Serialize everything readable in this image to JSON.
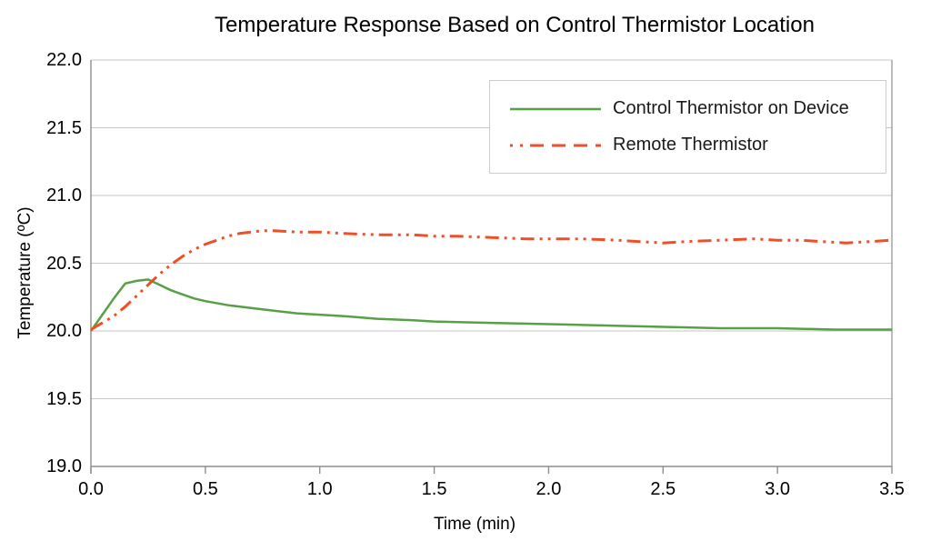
{
  "chart_data": {
    "type": "line",
    "title": "Temperature Response Based on Control Thermistor Location",
    "xlabel": "Time (min)",
    "ylabel": "Temperature (ºC)",
    "xlim": [
      0,
      3.5
    ],
    "ylim": [
      19.0,
      22.0
    ],
    "xticks": [
      0,
      0.5,
      1.0,
      1.5,
      2.0,
      2.5,
      3.0,
      3.5
    ],
    "xtick_labels": [
      "0.0",
      "0.5",
      "1.0",
      "1.5",
      "2.0",
      "2.5",
      "3.0",
      "3.5"
    ],
    "yticks": [
      19.0,
      19.5,
      20.0,
      20.5,
      21.0,
      21.5,
      22.0
    ],
    "ytick_labels": [
      "19.0",
      "19.5",
      "20.0",
      "20.5",
      "21.0",
      "21.5",
      "22.0"
    ],
    "grid": "horizontal",
    "legend_position": "top-right",
    "colors": {
      "grid": "#c6c6c6",
      "axis": "#8e8e8e",
      "legend_border": "#cccccc",
      "control_series": "#57a046",
      "remote_series": "#f04e27"
    },
    "series": [
      {
        "name": "Control Thermistor on Device",
        "color": "#57a046",
        "style": "solid",
        "points": [
          [
            0.0,
            20.0
          ],
          [
            0.05,
            20.12
          ],
          [
            0.1,
            20.24
          ],
          [
            0.15,
            20.35
          ],
          [
            0.2,
            20.37
          ],
          [
            0.25,
            20.38
          ],
          [
            0.3,
            20.34
          ],
          [
            0.35,
            20.3
          ],
          [
            0.4,
            20.27
          ],
          [
            0.45,
            20.24
          ],
          [
            0.5,
            20.22
          ],
          [
            0.6,
            20.19
          ],
          [
            0.7,
            20.17
          ],
          [
            0.8,
            20.15
          ],
          [
            0.9,
            20.13
          ],
          [
            1.0,
            20.12
          ],
          [
            1.1,
            20.11
          ],
          [
            1.25,
            20.09
          ],
          [
            1.4,
            20.08
          ],
          [
            1.5,
            20.07
          ],
          [
            1.75,
            20.06
          ],
          [
            2.0,
            20.05
          ],
          [
            2.25,
            20.04
          ],
          [
            2.5,
            20.03
          ],
          [
            2.75,
            20.02
          ],
          [
            3.0,
            20.02
          ],
          [
            3.25,
            20.01
          ],
          [
            3.5,
            20.01
          ]
        ]
      },
      {
        "name": "Remote Thermistor",
        "color": "#f04e27",
        "style": "dash-dot-dot",
        "points": [
          [
            0.0,
            20.01
          ],
          [
            0.05,
            20.06
          ],
          [
            0.1,
            20.11
          ],
          [
            0.15,
            20.18
          ],
          [
            0.2,
            20.26
          ],
          [
            0.25,
            20.34
          ],
          [
            0.3,
            20.42
          ],
          [
            0.35,
            20.49
          ],
          [
            0.4,
            20.55
          ],
          [
            0.45,
            20.6
          ],
          [
            0.5,
            20.64
          ],
          [
            0.55,
            20.67
          ],
          [
            0.6,
            20.7
          ],
          [
            0.65,
            20.72
          ],
          [
            0.7,
            20.73
          ],
          [
            0.75,
            20.74
          ],
          [
            0.8,
            20.74
          ],
          [
            0.9,
            20.73
          ],
          [
            1.0,
            20.73
          ],
          [
            1.1,
            20.72
          ],
          [
            1.25,
            20.71
          ],
          [
            1.4,
            20.71
          ],
          [
            1.5,
            20.7
          ],
          [
            1.6,
            20.7
          ],
          [
            1.75,
            20.69
          ],
          [
            1.9,
            20.68
          ],
          [
            2.0,
            20.68
          ],
          [
            2.15,
            20.68
          ],
          [
            2.3,
            20.67
          ],
          [
            2.4,
            20.66
          ],
          [
            2.5,
            20.65
          ],
          [
            2.6,
            20.66
          ],
          [
            2.75,
            20.67
          ],
          [
            2.9,
            20.68
          ],
          [
            3.0,
            20.67
          ],
          [
            3.1,
            20.67
          ],
          [
            3.2,
            20.66
          ],
          [
            3.3,
            20.65
          ],
          [
            3.4,
            20.66
          ],
          [
            3.5,
            20.67
          ]
        ]
      }
    ]
  }
}
